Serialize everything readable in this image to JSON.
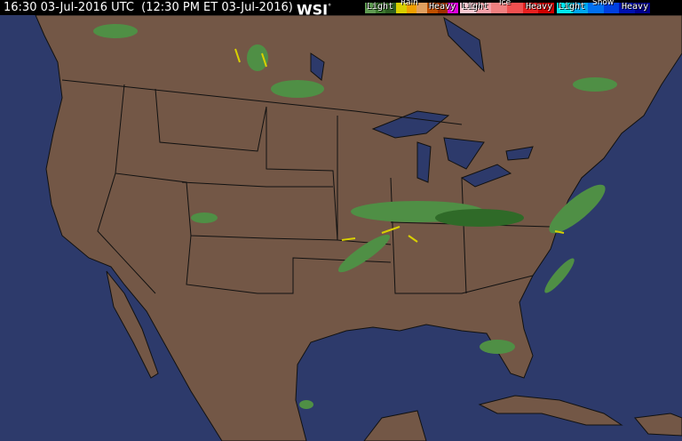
{
  "header": {
    "timestamp": "16:30 03-Jul-2016 UTC  (12:30 PM ET 03-Jul-2016)",
    "logo": "WSI",
    "logo_mark": "°"
  },
  "legend": [
    {
      "title": "Rain",
      "light": "Light",
      "heavy": "Heavy",
      "colors": [
        "#5f9a52",
        "#3e7a30",
        "#2d5e22",
        "#d8d000",
        "#f0a000",
        "#e0a060",
        "#c05000",
        "#a03000",
        "#e000e0"
      ]
    },
    {
      "title": "Ice",
      "light": "Light",
      "heavy": "Heavy",
      "colors": [
        "#f8c8d0",
        "#f4a0a8",
        "#f08080",
        "#f05050",
        "#e82020",
        "#d00000"
      ]
    },
    {
      "title": "Snow",
      "light": "Light",
      "heavy": "Heavy",
      "colors": [
        "#00e8f0",
        "#00a8f0",
        "#0070f0",
        "#0040e0",
        "#0010b0",
        "#000090"
      ]
    }
  ],
  "map": {
    "ocean_color": "#2d3a6b",
    "land_color": "#735746",
    "border_color": "#111111",
    "lake_color": "#2d3a6b",
    "radar_light_color": "#4f8f45",
    "radar_medium_color": "#2f6a28",
    "radar_heavy_color": "#d8d000"
  }
}
